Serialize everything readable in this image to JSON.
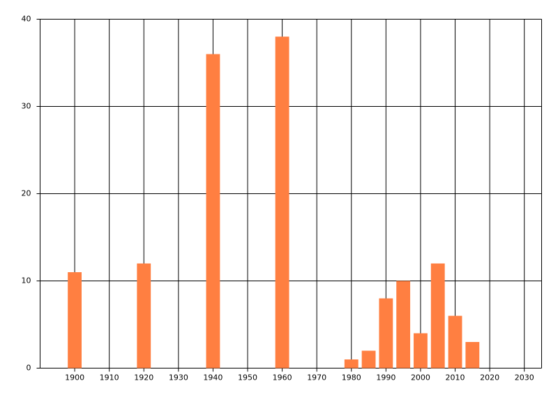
{
  "chart_data": {
    "type": "bar",
    "x": [
      1900,
      1920,
      1940,
      1960,
      1980,
      1985,
      1990,
      1995,
      2000,
      2005,
      2010,
      2015
    ],
    "values": [
      11,
      12,
      36,
      38,
      1,
      2,
      8,
      10,
      4,
      12,
      6,
      3
    ],
    "color": "#ff7f41",
    "xlim": [
      1890,
      2035
    ],
    "xticks": [
      1900,
      1910,
      1920,
      1930,
      1940,
      1950,
      1960,
      1970,
      1980,
      1990,
      2000,
      2010,
      2020,
      2030
    ],
    "ylim": [
      0,
      40
    ],
    "yticks": [
      0,
      10,
      20,
      30,
      40
    ],
    "grid": true
  }
}
